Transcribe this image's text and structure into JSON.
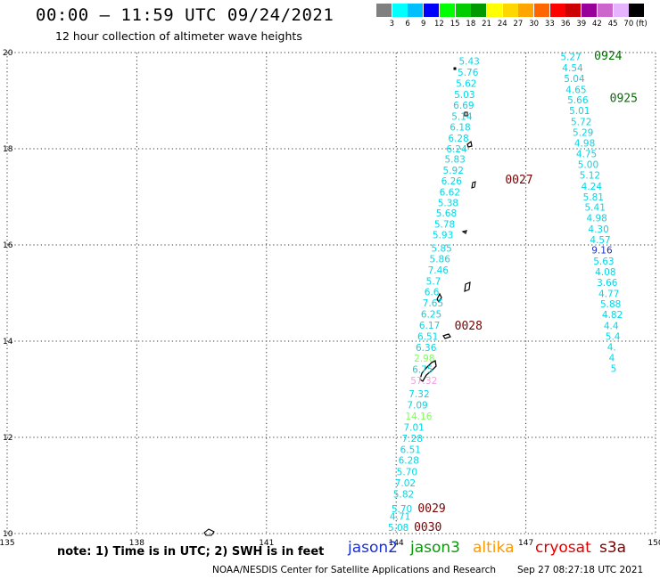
{
  "header": {
    "title": "00:00 – 11:59 UTC 09/24/2021",
    "subtitle": "12 hour collection of altimeter wave heights"
  },
  "color_scale": {
    "unit": "(ft)",
    "bins": [
      {
        "label": "3",
        "color": "#808080"
      },
      {
        "label": "6",
        "color": "#00ffff"
      },
      {
        "label": "9",
        "color": "#00bfff"
      },
      {
        "label": "12",
        "color": "#0000ff"
      },
      {
        "label": "15",
        "color": "#00ff00"
      },
      {
        "label": "18",
        "color": "#00cc00"
      },
      {
        "label": "21",
        "color": "#009900"
      },
      {
        "label": "24",
        "color": "#ffff00"
      },
      {
        "label": "27",
        "color": "#ffd700"
      },
      {
        "label": "30",
        "color": "#ffa500"
      },
      {
        "label": "33",
        "color": "#ff6600"
      },
      {
        "label": "36",
        "color": "#ff0000"
      },
      {
        "label": "39",
        "color": "#cc0000"
      },
      {
        "label": "42",
        "color": "#990099"
      },
      {
        "label": "45",
        "color": "#cc66cc"
      },
      {
        "label": "70",
        "color": "#e6b3ff"
      },
      {
        "label": "",
        "color": "#000000"
      }
    ]
  },
  "axes": {
    "lon_ticks": [
      135,
      138,
      141,
      144,
      147,
      150
    ],
    "lat_ticks": [
      10,
      12,
      14,
      16,
      18,
      20
    ],
    "lon_range": [
      135,
      150
    ],
    "lat_range": [
      10,
      20
    ]
  },
  "tracks": [
    {
      "color": "#00d8e6",
      "points": [
        {
          "lon": 145.45,
          "lat": 19.75,
          "v": "5.43"
        },
        {
          "lon": 145.42,
          "lat": 19.52,
          "v": "5.76"
        },
        {
          "lon": 145.38,
          "lat": 19.29,
          "v": "5.62"
        },
        {
          "lon": 145.34,
          "lat": 19.06,
          "v": "5.03"
        },
        {
          "lon": 145.32,
          "lat": 18.83,
          "v": "6.69"
        },
        {
          "lon": 145.28,
          "lat": 18.6,
          "v": "5.14"
        },
        {
          "lon": 145.24,
          "lat": 18.38,
          "v": "6.18"
        },
        {
          "lon": 145.2,
          "lat": 18.15,
          "v": "6.28"
        },
        {
          "lon": 145.16,
          "lat": 17.93,
          "v": "6.24"
        },
        {
          "lon": 145.12,
          "lat": 17.71,
          "v": "5.83"
        },
        {
          "lon": 145.08,
          "lat": 17.48,
          "v": "5.92"
        },
        {
          "lon": 145.04,
          "lat": 17.26,
          "v": "6.26"
        },
        {
          "lon": 145.0,
          "lat": 17.03,
          "v": "6.62"
        },
        {
          "lon": 144.96,
          "lat": 16.81,
          "v": "5.38"
        },
        {
          "lon": 144.92,
          "lat": 16.59,
          "v": "5.68"
        },
        {
          "lon": 144.88,
          "lat": 16.36,
          "v": "5.78"
        },
        {
          "lon": 144.84,
          "lat": 16.14,
          "v": "5.93"
        },
        {
          "lon": 144.81,
          "lat": 15.86,
          "v": "5.85"
        },
        {
          "lon": 144.77,
          "lat": 15.64,
          "v": "5.86"
        },
        {
          "lon": 144.73,
          "lat": 15.41,
          "v": "7.46"
        },
        {
          "lon": 144.69,
          "lat": 15.18,
          "v": "5.7"
        },
        {
          "lon": 144.65,
          "lat": 14.95,
          "v": "6.6"
        },
        {
          "lon": 144.61,
          "lat": 14.72,
          "v": "7.65"
        },
        {
          "lon": 144.57,
          "lat": 14.49,
          "v": "6.25"
        },
        {
          "lon": 144.53,
          "lat": 14.26,
          "v": "6.17"
        },
        {
          "lon": 144.49,
          "lat": 14.03,
          "v": "6.51"
        },
        {
          "lon": 144.45,
          "lat": 13.8,
          "v": "6.36"
        },
        {
          "lon": 144.41,
          "lat": 13.57,
          "v": "2.98",
          "color": "#7dff5a"
        },
        {
          "lon": 144.37,
          "lat": 13.34,
          "v": "6.75"
        },
        {
          "lon": 144.33,
          "lat": 13.11,
          "v": "57.32",
          "color": "#f0a0e0"
        },
        {
          "lon": 144.29,
          "lat": 12.83,
          "v": "7.32"
        },
        {
          "lon": 144.25,
          "lat": 12.6,
          "v": "7.09"
        },
        {
          "lon": 144.21,
          "lat": 12.37,
          "v": "14.16",
          "color": "#7dff5a"
        },
        {
          "lon": 144.17,
          "lat": 12.14,
          "v": "7.01"
        },
        {
          "lon": 144.13,
          "lat": 11.91,
          "v": "7.28"
        },
        {
          "lon": 144.09,
          "lat": 11.68,
          "v": "6.51"
        },
        {
          "lon": 144.05,
          "lat": 11.45,
          "v": "6.28"
        },
        {
          "lon": 144.01,
          "lat": 11.21,
          "v": "5.70"
        },
        {
          "lon": 143.97,
          "lat": 10.98,
          "v": "7.02"
        },
        {
          "lon": 143.93,
          "lat": 10.75,
          "v": "5.82"
        },
        {
          "lon": 143.89,
          "lat": 10.44,
          "v": "5.70"
        },
        {
          "lon": 143.85,
          "lat": 10.29,
          "v": "4.71"
        },
        {
          "lon": 143.81,
          "lat": 10.06,
          "v": "5.08"
        }
      ]
    },
    {
      "color": "#00d8e6",
      "points": [
        {
          "lon": 147.8,
          "lat": 19.84,
          "v": "5.27"
        },
        {
          "lon": 147.84,
          "lat": 19.61,
          "v": "4.54"
        },
        {
          "lon": 147.88,
          "lat": 19.39,
          "v": "5.04"
        },
        {
          "lon": 147.92,
          "lat": 19.16,
          "v": "4.65"
        },
        {
          "lon": 147.96,
          "lat": 18.94,
          "v": "5.66"
        },
        {
          "lon": 148.0,
          "lat": 18.72,
          "v": "5.01"
        },
        {
          "lon": 148.04,
          "lat": 18.49,
          "v": "5.72"
        },
        {
          "lon": 148.08,
          "lat": 18.27,
          "v": "5.29"
        },
        {
          "lon": 148.12,
          "lat": 18.05,
          "v": "4.98"
        },
        {
          "lon": 148.16,
          "lat": 17.82,
          "v": "4.75"
        },
        {
          "lon": 148.2,
          "lat": 17.6,
          "v": "5.00"
        },
        {
          "lon": 148.24,
          "lat": 17.38,
          "v": "5.12"
        },
        {
          "lon": 148.28,
          "lat": 17.15,
          "v": "4.24"
        },
        {
          "lon": 148.32,
          "lat": 16.93,
          "v": "5.81"
        },
        {
          "lon": 148.36,
          "lat": 16.71,
          "v": "5.41"
        },
        {
          "lon": 148.4,
          "lat": 16.49,
          "v": "4.98"
        },
        {
          "lon": 148.44,
          "lat": 16.26,
          "v": "4.30"
        },
        {
          "lon": 148.48,
          "lat": 16.04,
          "v": "4.57"
        },
        {
          "lon": 148.52,
          "lat": 15.82,
          "v": "9.16",
          "color": "#1a2fd0"
        },
        {
          "lon": 148.56,
          "lat": 15.59,
          "v": "5.63"
        },
        {
          "lon": 148.6,
          "lat": 15.37,
          "v": "4.08"
        },
        {
          "lon": 148.64,
          "lat": 15.15,
          "v": "3.66"
        },
        {
          "lon": 148.68,
          "lat": 14.92,
          "v": "4.77"
        },
        {
          "lon": 148.72,
          "lat": 14.7,
          "v": "5.88"
        },
        {
          "lon": 148.76,
          "lat": 14.48,
          "v": "4.82"
        },
        {
          "lon": 148.8,
          "lat": 14.25,
          "v": "4.4"
        },
        {
          "lon": 148.84,
          "lat": 14.03,
          "v": "5.4"
        },
        {
          "lon": 148.88,
          "lat": 13.81,
          "v": "4."
        },
        {
          "lon": 148.92,
          "lat": 13.58,
          "v": "4"
        },
        {
          "lon": 148.96,
          "lat": 13.36,
          "v": "5"
        }
      ]
    }
  ],
  "pass_times": [
    {
      "label": "0924",
      "lon": 148.58,
      "lat": 19.85,
      "color": "#007000"
    },
    {
      "label": "0925",
      "lon": 148.94,
      "lat": 18.97,
      "color": "#007000"
    },
    {
      "label": "0027",
      "lon": 146.52,
      "lat": 17.28,
      "color": "#7a0000"
    },
    {
      "label": "0028",
      "lon": 145.35,
      "lat": 14.24,
      "color": "#7a0000"
    },
    {
      "label": "0029",
      "lon": 144.5,
      "lat": 10.44,
      "color": "#7a0000"
    },
    {
      "label": "0030",
      "lon": 144.41,
      "lat": 10.06,
      "color": "#7a0000"
    }
  ],
  "footer": {
    "note": "note:  1) Time is in UTC;  2) SWH is in feet",
    "missions": [
      {
        "name": "jason2",
        "color": "#1a2fd0"
      },
      {
        "name": "jason3",
        "color": "#0a9a0a"
      },
      {
        "name": "altika",
        "color": "#ff9900"
      },
      {
        "name": "cryosat",
        "color": "#e00000"
      },
      {
        "name": "s3a",
        "color": "#7a0000"
      }
    ],
    "credit": "NOAA/NESDIS Center for Satellite Applications and Research",
    "timestamp": "Sep 27 08:27:18 UTC 2021"
  }
}
